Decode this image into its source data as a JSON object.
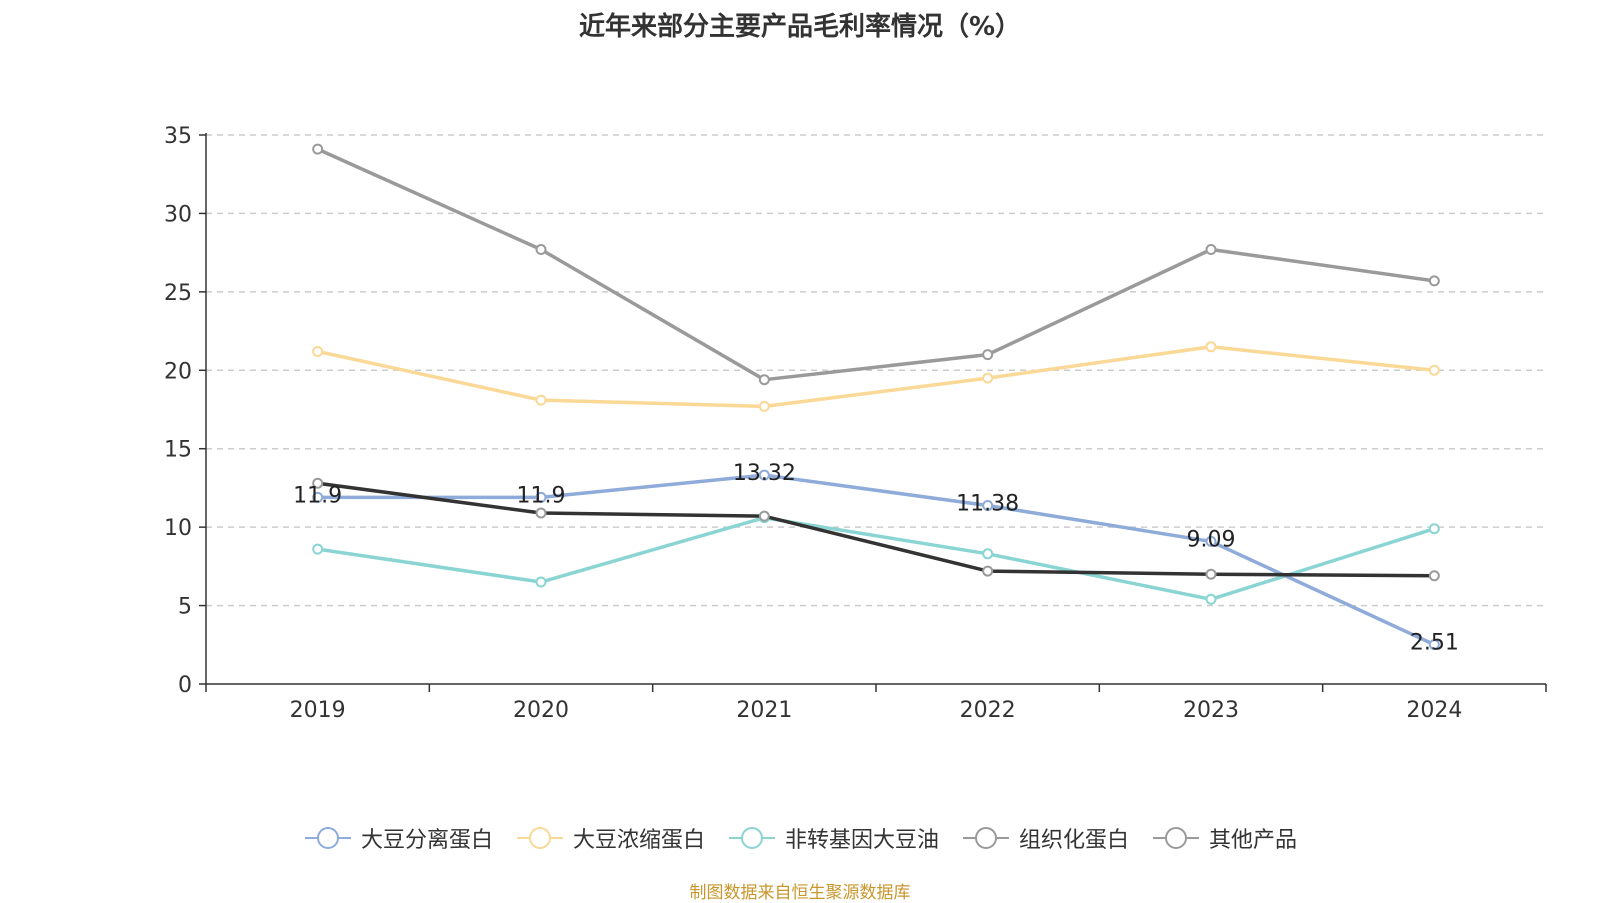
{
  "chart_data": {
    "type": "line",
    "title": "近年来部分主要产品毛利率情况（%）",
    "xlabel": "",
    "ylabel": "",
    "categories": [
      "2019",
      "2020",
      "2021",
      "2022",
      "2023",
      "2024"
    ],
    "ylim": [
      0,
      35
    ],
    "yticks": [
      0,
      5,
      10,
      15,
      20,
      25,
      30,
      35
    ],
    "grid": true,
    "legend_position": "bottom",
    "series": [
      {
        "name": "大豆分离蛋白",
        "color": "#8eabd9",
        "values": [
          11.9,
          11.9,
          13.32,
          11.38,
          9.09,
          2.51
        ],
        "labels": [
          "11.9",
          "11.9",
          "13.32",
          "11.38",
          "9.09",
          "2.51"
        ],
        "show_labels": true
      },
      {
        "name": "大豆浓缩蛋白",
        "color": "#fad896",
        "values": [
          21.2,
          18.1,
          17.7,
          19.5,
          21.5,
          20.0
        ],
        "show_labels": false
      },
      {
        "name": "非转基因大豆油",
        "color": "#8ad5d3",
        "values": [
          8.6,
          6.5,
          10.6,
          8.3,
          5.4,
          9.9
        ],
        "show_labels": false
      },
      {
        "name": "组织化蛋白",
        "color": "#9a9a9a",
        "values": [
          34.1,
          27.7,
          19.4,
          21.0,
          27.7,
          25.7
        ],
        "show_labels": false
      },
      {
        "name": "其他产品",
        "color": "#333333",
        "marker_color": "#9a9a9a",
        "values": [
          12.8,
          10.9,
          10.7,
          7.2,
          7.0,
          6.9
        ],
        "show_labels": false
      }
    ],
    "source": "制图数据来自恒生聚源数据库"
  }
}
